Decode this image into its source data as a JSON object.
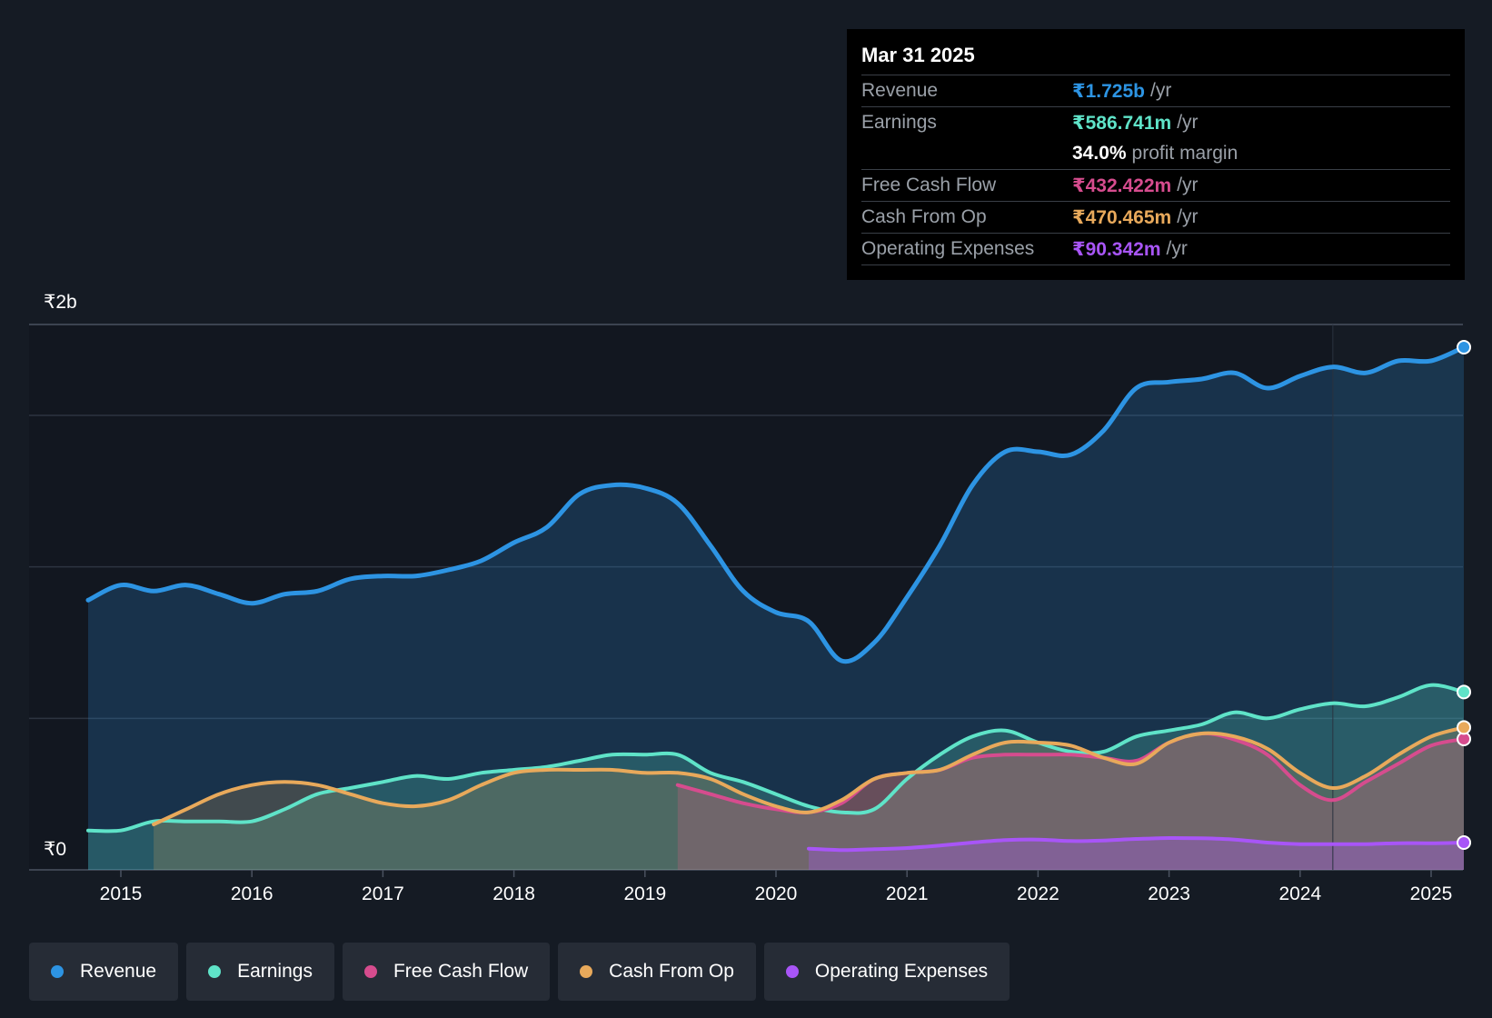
{
  "chart_data": {
    "type": "area",
    "y_axis_label_top": "₹2b",
    "y_axis_label_bottom": "₹0",
    "ylim": [
      0,
      1.8
    ],
    "xlim": [
      2014.75,
      2025.25
    ],
    "x_ticks": [
      "2015",
      "2016",
      "2017",
      "2018",
      "2019",
      "2020",
      "2021",
      "2022",
      "2023",
      "2024",
      "2025"
    ],
    "series": [
      {
        "name": "Revenue",
        "key": "revenue",
        "color": "#2d94e3",
        "x": [
          2014.75,
          2015.0,
          2015.25,
          2015.5,
          2015.75,
          2016.0,
          2016.25,
          2016.5,
          2016.75,
          2017.0,
          2017.25,
          2017.5,
          2017.75,
          2018.0,
          2018.25,
          2018.5,
          2018.75,
          2019.0,
          2019.25,
          2019.5,
          2019.75,
          2020.0,
          2020.25,
          2020.5,
          2020.75,
          2021.0,
          2021.25,
          2021.5,
          2021.75,
          2022.0,
          2022.25,
          2022.5,
          2022.75,
          2023.0,
          2023.25,
          2023.5,
          2023.75,
          2024.0,
          2024.25,
          2024.5,
          2024.75,
          2025.0,
          2025.25
        ],
        "values": [
          0.89,
          0.94,
          0.92,
          0.94,
          0.91,
          0.88,
          0.91,
          0.92,
          0.96,
          0.97,
          0.97,
          0.99,
          1.02,
          1.08,
          1.13,
          1.24,
          1.27,
          1.26,
          1.21,
          1.07,
          0.92,
          0.85,
          0.82,
          0.69,
          0.75,
          0.9,
          1.07,
          1.27,
          1.38,
          1.38,
          1.37,
          1.45,
          1.59,
          1.61,
          1.62,
          1.64,
          1.59,
          1.63,
          1.66,
          1.64,
          1.68,
          1.68,
          1.725
        ]
      },
      {
        "name": "Earnings",
        "key": "earnings",
        "color": "#5fe3c8",
        "x": [
          2014.75,
          2015.0,
          2015.25,
          2015.5,
          2015.75,
          2016.0,
          2016.25,
          2016.5,
          2016.75,
          2017.0,
          2017.25,
          2017.5,
          2017.75,
          2018.0,
          2018.25,
          2018.5,
          2018.75,
          2019.0,
          2019.25,
          2019.5,
          2019.75,
          2020.0,
          2020.25,
          2020.5,
          2020.75,
          2021.0,
          2021.25,
          2021.5,
          2021.75,
          2022.0,
          2022.25,
          2022.5,
          2022.75,
          2023.0,
          2023.25,
          2023.5,
          2023.75,
          2024.0,
          2024.25,
          2024.5,
          2024.75,
          2025.0,
          2025.25
        ],
        "values": [
          0.13,
          0.13,
          0.16,
          0.16,
          0.16,
          0.16,
          0.2,
          0.25,
          0.27,
          0.29,
          0.31,
          0.3,
          0.32,
          0.33,
          0.34,
          0.36,
          0.38,
          0.38,
          0.38,
          0.32,
          0.29,
          0.25,
          0.21,
          0.19,
          0.2,
          0.3,
          0.38,
          0.44,
          0.46,
          0.42,
          0.39,
          0.39,
          0.44,
          0.46,
          0.48,
          0.52,
          0.5,
          0.53,
          0.55,
          0.54,
          0.57,
          0.61,
          0.587
        ]
      },
      {
        "name": "Free Cash Flow",
        "key": "fcf",
        "color": "#d64c8e",
        "x": [
          2019.25,
          2019.5,
          2019.75,
          2020.0,
          2020.25,
          2020.5,
          2020.75,
          2021.0,
          2021.25,
          2021.5,
          2021.75,
          2022.0,
          2022.25,
          2022.5,
          2022.75,
          2023.0,
          2023.25,
          2023.5,
          2023.75,
          2024.0,
          2024.25,
          2024.5,
          2024.75,
          2025.0,
          2025.25
        ],
        "values": [
          0.28,
          0.25,
          0.22,
          0.2,
          0.19,
          0.22,
          0.3,
          0.32,
          0.33,
          0.37,
          0.38,
          0.38,
          0.38,
          0.37,
          0.36,
          0.42,
          0.45,
          0.43,
          0.38,
          0.28,
          0.23,
          0.29,
          0.35,
          0.41,
          0.432
        ]
      },
      {
        "name": "Cash From Op",
        "key": "cfo",
        "color": "#e8a95b",
        "x": [
          2015.25,
          2015.5,
          2015.75,
          2016.0,
          2016.25,
          2016.5,
          2016.75,
          2017.0,
          2017.25,
          2017.5,
          2017.75,
          2018.0,
          2018.25,
          2018.5,
          2018.75,
          2019.0,
          2019.25,
          2019.5,
          2019.75,
          2020.0,
          2020.25,
          2020.5,
          2020.75,
          2021.0,
          2021.25,
          2021.5,
          2021.75,
          2022.0,
          2022.25,
          2022.5,
          2022.75,
          2023.0,
          2023.25,
          2023.5,
          2023.75,
          2024.0,
          2024.25,
          2024.5,
          2024.75,
          2025.0,
          2025.25
        ],
        "values": [
          0.15,
          0.2,
          0.25,
          0.28,
          0.29,
          0.28,
          0.25,
          0.22,
          0.21,
          0.23,
          0.28,
          0.32,
          0.33,
          0.33,
          0.33,
          0.32,
          0.32,
          0.3,
          0.25,
          0.21,
          0.19,
          0.23,
          0.3,
          0.32,
          0.33,
          0.38,
          0.42,
          0.42,
          0.41,
          0.37,
          0.35,
          0.42,
          0.45,
          0.44,
          0.4,
          0.32,
          0.27,
          0.31,
          0.38,
          0.44,
          0.47
        ]
      },
      {
        "name": "Operating Expenses",
        "key": "opex",
        "color": "#a855f7",
        "x": [
          2020.25,
          2020.5,
          2020.75,
          2021.0,
          2021.25,
          2021.5,
          2021.75,
          2022.0,
          2022.25,
          2022.5,
          2022.75,
          2023.0,
          2023.25,
          2023.5,
          2023.75,
          2024.0,
          2024.25,
          2024.5,
          2024.75,
          2025.0,
          2025.25
        ],
        "values": [
          0.07,
          0.065,
          0.068,
          0.072,
          0.08,
          0.09,
          0.098,
          0.1,
          0.095,
          0.097,
          0.102,
          0.105,
          0.104,
          0.1,
          0.09,
          0.085,
          0.085,
          0.085,
          0.088,
          0.088,
          0.09
        ]
      }
    ],
    "tooltip": {
      "date": "Mar 31 2025",
      "revenue": {
        "label": "Revenue",
        "value": "₹1.725b",
        "unit": "/yr"
      },
      "earnings": {
        "label": "Earnings",
        "value": "₹586.741m",
        "unit": "/yr"
      },
      "margin": {
        "value": "34.0%",
        "text": "profit margin"
      },
      "fcf": {
        "label": "Free Cash Flow",
        "value": "₹432.422m",
        "unit": "/yr"
      },
      "cfo": {
        "label": "Cash From Op",
        "value": "₹470.465m",
        "unit": "/yr"
      },
      "opex": {
        "label": "Operating Expenses",
        "value": "₹90.342m",
        "unit": "/yr"
      }
    }
  },
  "legend": [
    {
      "label": "Revenue",
      "color": "#2d94e3"
    },
    {
      "label": "Earnings",
      "color": "#5fe3c8"
    },
    {
      "label": "Free Cash Flow",
      "color": "#d64c8e"
    },
    {
      "label": "Cash From Op",
      "color": "#e8a95b"
    },
    {
      "label": "Operating Expenses",
      "color": "#a855f7"
    }
  ]
}
